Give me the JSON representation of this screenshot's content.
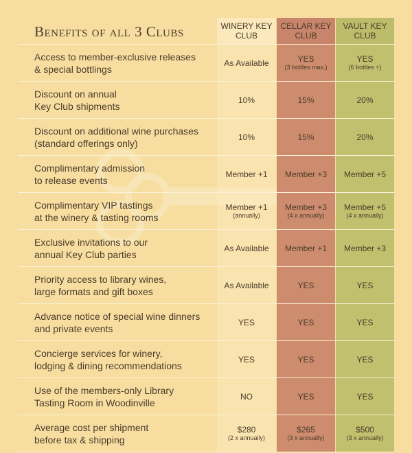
{
  "title": "Benefits of all 3 Clubs",
  "columns": [
    {
      "line1": "WINERY KEY",
      "line2": "CLUB"
    },
    {
      "line1": "CELLAR KEY",
      "line2": "CLUB"
    },
    {
      "line1": "VAULT KEY",
      "line2": "CLUB"
    }
  ],
  "colors": {
    "background": "#f7dea0",
    "winery": "#fbe9bd",
    "cellar": "#c9856b",
    "vault": "#bcbd6a",
    "text": "#4a3b2a"
  },
  "rows": [
    {
      "label1": "Access to member-exclusive releases",
      "label2": "& special bottlings",
      "cells": [
        {
          "main": "As Available",
          "sub": ""
        },
        {
          "main": "YES",
          "sub": "(3 bottles max.)"
        },
        {
          "main": "YES",
          "sub": "(6 bottles +)"
        }
      ]
    },
    {
      "label1": "Discount on annual",
      "label2": "Key Club shipments",
      "cells": [
        {
          "main": "10%",
          "sub": ""
        },
        {
          "main": "15%",
          "sub": ""
        },
        {
          "main": "20%",
          "sub": ""
        }
      ]
    },
    {
      "label1": "Discount on additional wine purchases",
      "label2": "(standard offerings only)",
      "cells": [
        {
          "main": "10%",
          "sub": ""
        },
        {
          "main": "15%",
          "sub": ""
        },
        {
          "main": "20%",
          "sub": ""
        }
      ]
    },
    {
      "label1": "Complimentary admission",
      "label2": "to release events",
      "cells": [
        {
          "main": "Member +1",
          "sub": ""
        },
        {
          "main": "Member +3",
          "sub": ""
        },
        {
          "main": "Member +5",
          "sub": ""
        }
      ]
    },
    {
      "label1": "Complimentary VIP tastings",
      "label2": "at the winery & tasting rooms",
      "cells": [
        {
          "main": "Member +1",
          "sub": "(annually)"
        },
        {
          "main": "Member +3",
          "sub": "(4 x annually)"
        },
        {
          "main": "Member +5",
          "sub": "(4 x annually)"
        }
      ]
    },
    {
      "label1": "Exclusive invitations to our",
      "label2": "annual Key Club parties",
      "cells": [
        {
          "main": "As Available",
          "sub": ""
        },
        {
          "main": "Member +1",
          "sub": ""
        },
        {
          "main": "Member +3",
          "sub": ""
        }
      ]
    },
    {
      "label1": "Priority access to library wines,",
      "label2": "large formats and gift boxes",
      "cells": [
        {
          "main": "As Available",
          "sub": ""
        },
        {
          "main": "YES",
          "sub": ""
        },
        {
          "main": "YES",
          "sub": ""
        }
      ]
    },
    {
      "label1": "Advance notice of special wine dinners",
      "label2": "and private events",
      "cells": [
        {
          "main": "YES",
          "sub": ""
        },
        {
          "main": "YES",
          "sub": ""
        },
        {
          "main": "YES",
          "sub": ""
        }
      ]
    },
    {
      "label1": "Concierge services for winery,",
      "label2": "lodging & dining recommendations",
      "cells": [
        {
          "main": "YES",
          "sub": ""
        },
        {
          "main": "YES",
          "sub": ""
        },
        {
          "main": "YES",
          "sub": ""
        }
      ]
    },
    {
      "label1": "Use of the members-only Library",
      "label2": "Tasting Room in Woodinville",
      "cells": [
        {
          "main": "NO",
          "sub": ""
        },
        {
          "main": "YES",
          "sub": ""
        },
        {
          "main": "YES",
          "sub": ""
        }
      ]
    },
    {
      "label1": "Average cost per shipment",
      "label2": "before tax & shipping",
      "cells": [
        {
          "main": "$280",
          "sub": "(2 x annually)"
        },
        {
          "main": "$265",
          "sub": "(3 x annually)"
        },
        {
          "main": "$500",
          "sub": "(3 x annually)"
        }
      ]
    }
  ]
}
